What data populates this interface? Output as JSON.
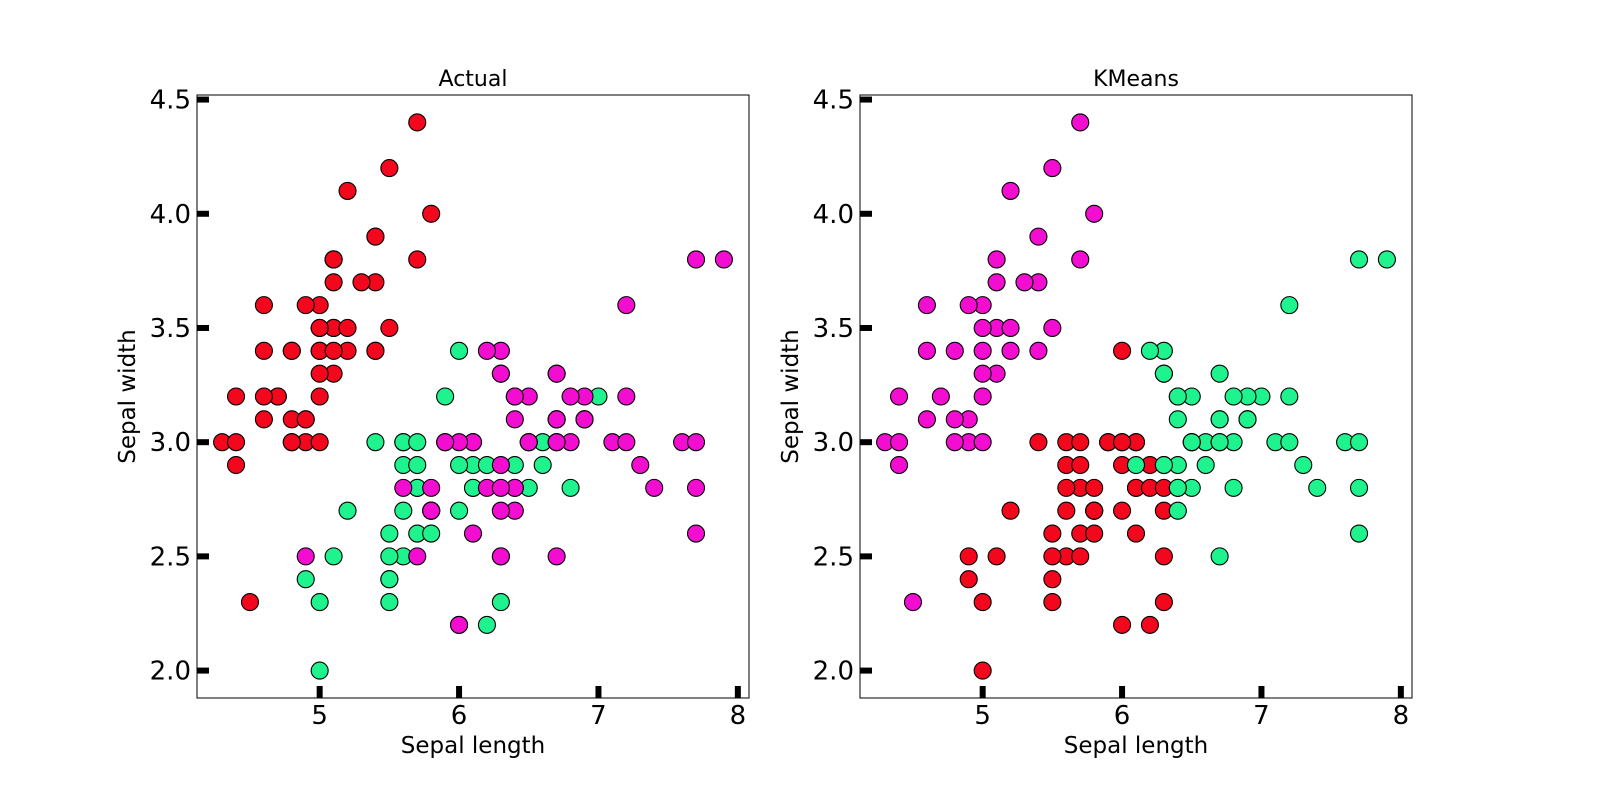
{
  "chart_data": [
    {
      "type": "scatter",
      "title": "Actual",
      "xlabel": "Sepal length",
      "ylabel": "Sepal width",
      "xlim": [
        4.12,
        8.08
      ],
      "ylim": [
        1.88,
        4.52
      ],
      "xticks": [
        "5",
        "6",
        "7",
        "8"
      ],
      "yticks": [
        "2.0",
        "2.5",
        "3.0",
        "3.5",
        "4.0",
        "4.5"
      ],
      "grid": false,
      "legend": "none",
      "series": [
        {
          "color": "#f2071d",
          "points": [
            [
              5.1,
              3.5
            ],
            [
              4.9,
              3.0
            ],
            [
              4.7,
              3.2
            ],
            [
              4.6,
              3.1
            ],
            [
              5.0,
              3.6
            ],
            [
              5.4,
              3.9
            ],
            [
              4.6,
              3.4
            ],
            [
              5.0,
              3.4
            ],
            [
              4.4,
              2.9
            ],
            [
              4.9,
              3.1
            ],
            [
              5.4,
              3.7
            ],
            [
              4.8,
              3.4
            ],
            [
              4.8,
              3.0
            ],
            [
              4.3,
              3.0
            ],
            [
              5.8,
              4.0
            ],
            [
              5.7,
              4.4
            ],
            [
              5.4,
              3.9
            ],
            [
              5.1,
              3.5
            ],
            [
              5.7,
              3.8
            ],
            [
              5.1,
              3.8
            ],
            [
              5.4,
              3.4
            ],
            [
              5.1,
              3.7
            ],
            [
              4.6,
              3.6
            ],
            [
              5.1,
              3.3
            ],
            [
              4.8,
              3.4
            ],
            [
              5.0,
              3.0
            ],
            [
              5.0,
              3.4
            ],
            [
              5.2,
              3.5
            ],
            [
              5.2,
              3.4
            ],
            [
              4.7,
              3.2
            ],
            [
              4.8,
              3.1
            ],
            [
              5.4,
              3.4
            ],
            [
              5.2,
              4.1
            ],
            [
              5.5,
              4.2
            ],
            [
              4.9,
              3.1
            ],
            [
              5.0,
              3.2
            ],
            [
              5.5,
              3.5
            ],
            [
              4.9,
              3.6
            ],
            [
              4.4,
              3.0
            ],
            [
              5.1,
              3.4
            ],
            [
              5.0,
              3.5
            ],
            [
              4.5,
              2.3
            ],
            [
              4.4,
              3.2
            ],
            [
              5.0,
              3.5
            ],
            [
              5.1,
              3.8
            ],
            [
              4.8,
              3.0
            ],
            [
              5.1,
              3.8
            ],
            [
              4.6,
              3.2
            ],
            [
              5.3,
              3.7
            ],
            [
              5.0,
              3.3
            ]
          ]
        },
        {
          "color": "#1ef38e",
          "points": [
            [
              7.0,
              3.2
            ],
            [
              6.4,
              3.2
            ],
            [
              6.9,
              3.1
            ],
            [
              5.5,
              2.3
            ],
            [
              6.5,
              2.8
            ],
            [
              5.7,
              2.8
            ],
            [
              6.3,
              3.3
            ],
            [
              4.9,
              2.4
            ],
            [
              6.6,
              2.9
            ],
            [
              5.2,
              2.7
            ],
            [
              5.0,
              2.0
            ],
            [
              5.9,
              3.0
            ],
            [
              6.0,
              2.2
            ],
            [
              6.1,
              2.9
            ],
            [
              5.6,
              2.9
            ],
            [
              6.7,
              3.1
            ],
            [
              5.6,
              3.0
            ],
            [
              5.8,
              2.7
            ],
            [
              6.2,
              2.2
            ],
            [
              5.6,
              2.5
            ],
            [
              5.9,
              3.2
            ],
            [
              6.1,
              2.8
            ],
            [
              6.3,
              2.5
            ],
            [
              6.1,
              2.8
            ],
            [
              6.4,
              2.9
            ],
            [
              6.6,
              3.0
            ],
            [
              6.8,
              2.8
            ],
            [
              6.7,
              3.0
            ],
            [
              6.0,
              2.9
            ],
            [
              5.7,
              2.6
            ],
            [
              5.5,
              2.4
            ],
            [
              5.5,
              2.4
            ],
            [
              5.8,
              2.7
            ],
            [
              6.0,
              2.7
            ],
            [
              5.4,
              3.0
            ],
            [
              6.0,
              3.4
            ],
            [
              6.7,
              3.1
            ],
            [
              6.3,
              2.3
            ],
            [
              5.6,
              3.0
            ],
            [
              5.5,
              2.5
            ],
            [
              5.5,
              2.6
            ],
            [
              6.1,
              3.0
            ],
            [
              5.8,
              2.6
            ],
            [
              5.0,
              2.3
            ],
            [
              5.6,
              2.7
            ],
            [
              5.7,
              3.0
            ],
            [
              5.7,
              2.9
            ],
            [
              6.2,
              2.9
            ],
            [
              5.1,
              2.5
            ],
            [
              5.7,
              2.8
            ]
          ]
        },
        {
          "color": "#f20dd0",
          "points": [
            [
              6.3,
              3.3
            ],
            [
              5.8,
              2.7
            ],
            [
              7.1,
              3.0
            ],
            [
              6.3,
              2.9
            ],
            [
              6.5,
              3.0
            ],
            [
              7.6,
              3.0
            ],
            [
              4.9,
              2.5
            ],
            [
              7.3,
              2.9
            ],
            [
              6.7,
              2.5
            ],
            [
              7.2,
              3.6
            ],
            [
              6.5,
              3.2
            ],
            [
              6.4,
              2.7
            ],
            [
              6.8,
              3.0
            ],
            [
              5.7,
              2.5
            ],
            [
              5.8,
              2.8
            ],
            [
              6.4,
              3.2
            ],
            [
              6.5,
              3.0
            ],
            [
              7.7,
              3.8
            ],
            [
              7.7,
              2.6
            ],
            [
              6.0,
              2.2
            ],
            [
              6.9,
              3.2
            ],
            [
              5.6,
              2.8
            ],
            [
              7.7,
              2.8
            ],
            [
              6.3,
              2.7
            ],
            [
              6.7,
              3.3
            ],
            [
              7.2,
              3.2
            ],
            [
              6.2,
              2.8
            ],
            [
              6.1,
              3.0
            ],
            [
              6.4,
              2.8
            ],
            [
              7.2,
              3.0
            ],
            [
              7.4,
              2.8
            ],
            [
              7.9,
              3.8
            ],
            [
              6.4,
              2.8
            ],
            [
              6.3,
              2.8
            ],
            [
              6.1,
              2.6
            ],
            [
              7.7,
              3.0
            ],
            [
              6.3,
              3.4
            ],
            [
              6.4,
              3.1
            ],
            [
              6.0,
              3.0
            ],
            [
              6.9,
              3.1
            ],
            [
              6.7,
              3.1
            ],
            [
              6.9,
              3.1
            ],
            [
              5.8,
              2.7
            ],
            [
              6.8,
              3.2
            ],
            [
              6.7,
              3.3
            ],
            [
              6.7,
              3.0
            ],
            [
              6.3,
              2.5
            ],
            [
              6.5,
              3.0
            ],
            [
              6.2,
              3.4
            ],
            [
              5.9,
              3.0
            ]
          ]
        }
      ]
    },
    {
      "type": "scatter",
      "title": "KMeans",
      "xlabel": "Sepal length",
      "ylabel": "Sepal width",
      "xlim": [
        4.12,
        8.08
      ],
      "ylim": [
        1.88,
        4.52
      ],
      "xticks": [
        "5",
        "6",
        "7",
        "8"
      ],
      "yticks": [
        "2.0",
        "2.5",
        "3.0",
        "3.5",
        "4.0",
        "4.5"
      ],
      "grid": false,
      "legend": "none",
      "series": [
        {
          "color": "#f20dd0",
          "points": [
            [
              5.1,
              3.5
            ],
            [
              4.9,
              3.0
            ],
            [
              4.7,
              3.2
            ],
            [
              4.6,
              3.1
            ],
            [
              5.0,
              3.6
            ],
            [
              5.4,
              3.9
            ],
            [
              4.6,
              3.4
            ],
            [
              5.0,
              3.4
            ],
            [
              4.4,
              2.9
            ],
            [
              4.9,
              3.1
            ],
            [
              5.4,
              3.7
            ],
            [
              4.8,
              3.4
            ],
            [
              4.8,
              3.0
            ],
            [
              4.3,
              3.0
            ],
            [
              5.8,
              4.0
            ],
            [
              5.7,
              4.4
            ],
            [
              5.7,
              3.8
            ],
            [
              5.1,
              3.8
            ],
            [
              5.4,
              3.4
            ],
            [
              5.1,
              3.7
            ],
            [
              4.6,
              3.6
            ],
            [
              5.1,
              3.3
            ],
            [
              5.0,
              3.0
            ],
            [
              5.2,
              3.5
            ],
            [
              5.2,
              3.4
            ],
            [
              4.8,
              3.1
            ],
            [
              5.2,
              4.1
            ],
            [
              5.5,
              4.2
            ],
            [
              5.0,
              3.2
            ],
            [
              5.5,
              3.5
            ],
            [
              4.9,
              3.6
            ],
            [
              4.4,
              3.0
            ],
            [
              5.0,
              3.5
            ],
            [
              4.5,
              2.3
            ],
            [
              4.4,
              3.2
            ],
            [
              5.3,
              3.7
            ],
            [
              5.0,
              3.3
            ]
          ]
        },
        {
          "color": "#f2071d",
          "points": [
            [
              5.5,
              2.3
            ],
            [
              5.7,
              2.8
            ],
            [
              4.9,
              2.4
            ],
            [
              5.2,
              2.7
            ],
            [
              5.0,
              2.0
            ],
            [
              5.9,
              3.0
            ],
            [
              6.0,
              2.2
            ],
            [
              5.6,
              2.9
            ],
            [
              5.6,
              3.0
            ],
            [
              5.8,
              2.7
            ],
            [
              6.2,
              2.2
            ],
            [
              5.6,
              2.5
            ],
            [
              6.1,
              2.8
            ],
            [
              6.1,
              2.8
            ],
            [
              6.0,
              2.9
            ],
            [
              5.7,
              2.6
            ],
            [
              5.5,
              2.4
            ],
            [
              5.8,
              2.7
            ],
            [
              6.0,
              2.7
            ],
            [
              5.4,
              3.0
            ],
            [
              6.0,
              3.4
            ],
            [
              6.3,
              2.3
            ],
            [
              5.5,
              2.5
            ],
            [
              5.5,
              2.6
            ],
            [
              6.1,
              3.0
            ],
            [
              5.8,
              2.6
            ],
            [
              5.0,
              2.3
            ],
            [
              5.6,
              2.7
            ],
            [
              5.7,
              3.0
            ],
            [
              5.7,
              2.9
            ],
            [
              6.2,
              2.9
            ],
            [
              5.1,
              2.5
            ],
            [
              4.9,
              2.5
            ],
            [
              5.7,
              2.5
            ],
            [
              5.8,
              2.8
            ],
            [
              5.6,
              2.8
            ],
            [
              6.3,
              2.7
            ],
            [
              6.2,
              2.8
            ],
            [
              6.1,
              3.0
            ],
            [
              6.3,
              2.8
            ],
            [
              6.1,
              2.6
            ],
            [
              6.0,
              3.0
            ],
            [
              5.8,
              2.7
            ],
            [
              6.3,
              2.5
            ],
            [
              5.9,
              3.0
            ],
            [
              6.3,
              2.9
            ],
            [
              6.0,
              3.0
            ]
          ]
        },
        {
          "color": "#1ef38e",
          "points": [
            [
              7.0,
              3.2
            ],
            [
              6.4,
              3.2
            ],
            [
              6.9,
              3.1
            ],
            [
              6.5,
              2.8
            ],
            [
              6.3,
              3.3
            ],
            [
              6.6,
              2.9
            ],
            [
              6.1,
              2.9
            ],
            [
              6.7,
              3.1
            ],
            [
              6.4,
              2.9
            ],
            [
              6.6,
              3.0
            ],
            [
              6.8,
              2.8
            ],
            [
              6.7,
              3.0
            ],
            [
              6.7,
              3.1
            ],
            [
              6.3,
              3.3
            ],
            [
              7.1,
              3.0
            ],
            [
              6.5,
              3.0
            ],
            [
              7.6,
              3.0
            ],
            [
              7.3,
              2.9
            ],
            [
              6.7,
              2.5
            ],
            [
              7.2,
              3.6
            ],
            [
              6.5,
              3.2
            ],
            [
              6.4,
              2.7
            ],
            [
              6.8,
              3.0
            ],
            [
              6.4,
              3.2
            ],
            [
              7.7,
              3.8
            ],
            [
              7.7,
              2.6
            ],
            [
              6.9,
              3.2
            ],
            [
              7.7,
              2.8
            ],
            [
              6.7,
              3.3
            ],
            [
              7.2,
              3.2
            ],
            [
              6.4,
              2.8
            ],
            [
              7.2,
              3.0
            ],
            [
              7.4,
              2.8
            ],
            [
              7.9,
              3.8
            ],
            [
              6.4,
              2.8
            ],
            [
              7.7,
              3.0
            ],
            [
              6.3,
              3.4
            ],
            [
              6.4,
              3.1
            ],
            [
              6.9,
              3.1
            ],
            [
              6.8,
              3.2
            ],
            [
              6.7,
              3.0
            ],
            [
              6.5,
              3.0
            ],
            [
              6.2,
              3.4
            ],
            [
              6.9,
              3.1
            ],
            [
              6.3,
              2.9
            ],
            [
              6.5,
              3.0
            ]
          ]
        }
      ]
    }
  ]
}
